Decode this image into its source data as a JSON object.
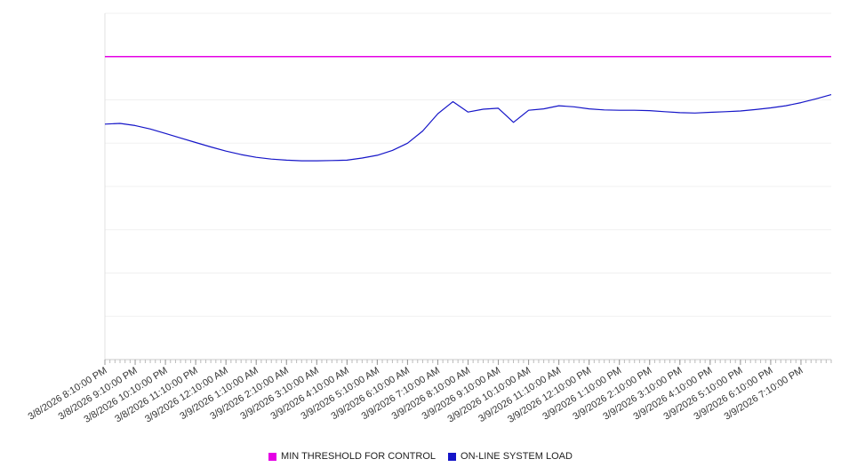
{
  "chart_data": {
    "type": "line",
    "title": "",
    "xlabel": "",
    "ylabel": "",
    "ylim": [
      0,
      100
    ],
    "grid": "horizontal",
    "grid_step": 12.5,
    "legend_position": "bottom-center",
    "y_axis_labels_visible": false,
    "categories": [
      "3/8/2026 8:10:00 PM",
      "3/8/2026 9:10:00 PM",
      "3/8/2026 10:10:00 PM",
      "3/8/2026 11:10:00 PM",
      "3/9/2026 12:10:00 AM",
      "3/9/2026 1:10:00 AM",
      "3/9/2026 2:10:00 AM",
      "3/9/2026 3:10:00 AM",
      "3/9/2026 4:10:00 AM",
      "3/9/2026 5:10:00 AM",
      "3/9/2026 6:10:00 AM",
      "3/9/2026 7:10:00 AM",
      "3/9/2026 8:10:00 AM",
      "3/9/2026 9:10:00 AM",
      "3/9/2026 10:10:00 AM",
      "3/9/2026 11:10:00 AM",
      "3/9/2026 12:10:00 PM",
      "3/9/2026 1:10:00 PM",
      "3/9/2026 2:10:00 PM",
      "3/9/2026 3:10:00 PM",
      "3/9/2026 4:10:00 PM",
      "3/9/2026 5:10:00 PM",
      "3/9/2026 6:10:00 PM",
      "3/9/2026 7:10:00 PM"
    ],
    "x_span_hours": 24,
    "series": [
      {
        "name": "MIN THRESHOLD FOR CONTROL",
        "color": "#e500e5",
        "style": "constant",
        "value": 87.5
      },
      {
        "name": "ON-LINE SYSTEM LOAD",
        "color": "#1515c8",
        "x_step_hours": 0.5,
        "values": [
          68.0,
          68.2,
          67.6,
          66.6,
          65.3,
          64.0,
          62.7,
          61.4,
          60.2,
          59.2,
          58.4,
          57.9,
          57.6,
          57.4,
          57.4,
          57.5,
          57.6,
          58.2,
          59.0,
          60.4,
          62.5,
          66.0,
          71.0,
          74.5,
          71.5,
          72.3,
          72.6,
          68.5,
          72.0,
          72.4,
          73.3,
          73.0,
          72.4,
          72.1,
          72.0,
          72.0,
          71.9,
          71.6,
          71.3,
          71.2,
          71.4,
          71.6,
          71.8,
          72.2,
          72.7,
          73.3,
          74.2,
          75.3,
          76.5
        ]
      }
    ]
  },
  "legend": {
    "threshold_label": "MIN THRESHOLD FOR CONTROL",
    "load_label": "ON-LINE SYSTEM LOAD",
    "threshold_color": "#e500e5",
    "load_color": "#1515c8"
  }
}
